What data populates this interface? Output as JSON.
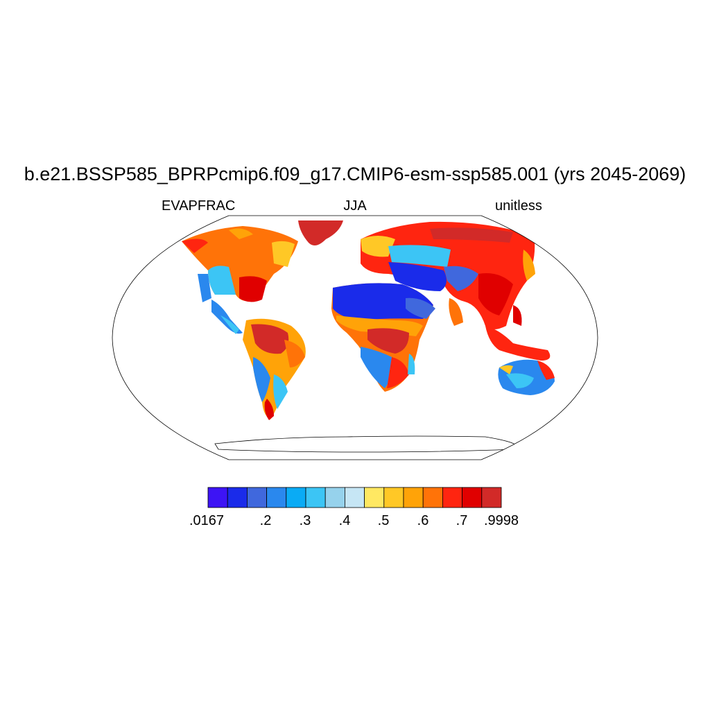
{
  "title": "b.e21.BSSP585_BPRPcmip6.f09_g17.CMIP6-esm-ssp585.001 (yrs 2045-2069)",
  "left_label": "EVAPFRAC",
  "center_label": "JJA",
  "right_label": "unitless",
  "colorbar": {
    "colors": [
      "#3d14f5",
      "#1a2bea",
      "#4068dd",
      "#2a88ee",
      "#0aabf5",
      "#3cc5f5",
      "#96d2ec",
      "#c6e6f5",
      "#ffe862",
      "#ffc826",
      "#ffa308",
      "#ff7308",
      "#ff2510",
      "#e00000",
      "#d22a28"
    ],
    "tick_labels": [
      ".0167",
      ".2",
      ".3",
      ".4",
      ".5",
      ".6",
      ".7",
      ".9998"
    ]
  }
}
